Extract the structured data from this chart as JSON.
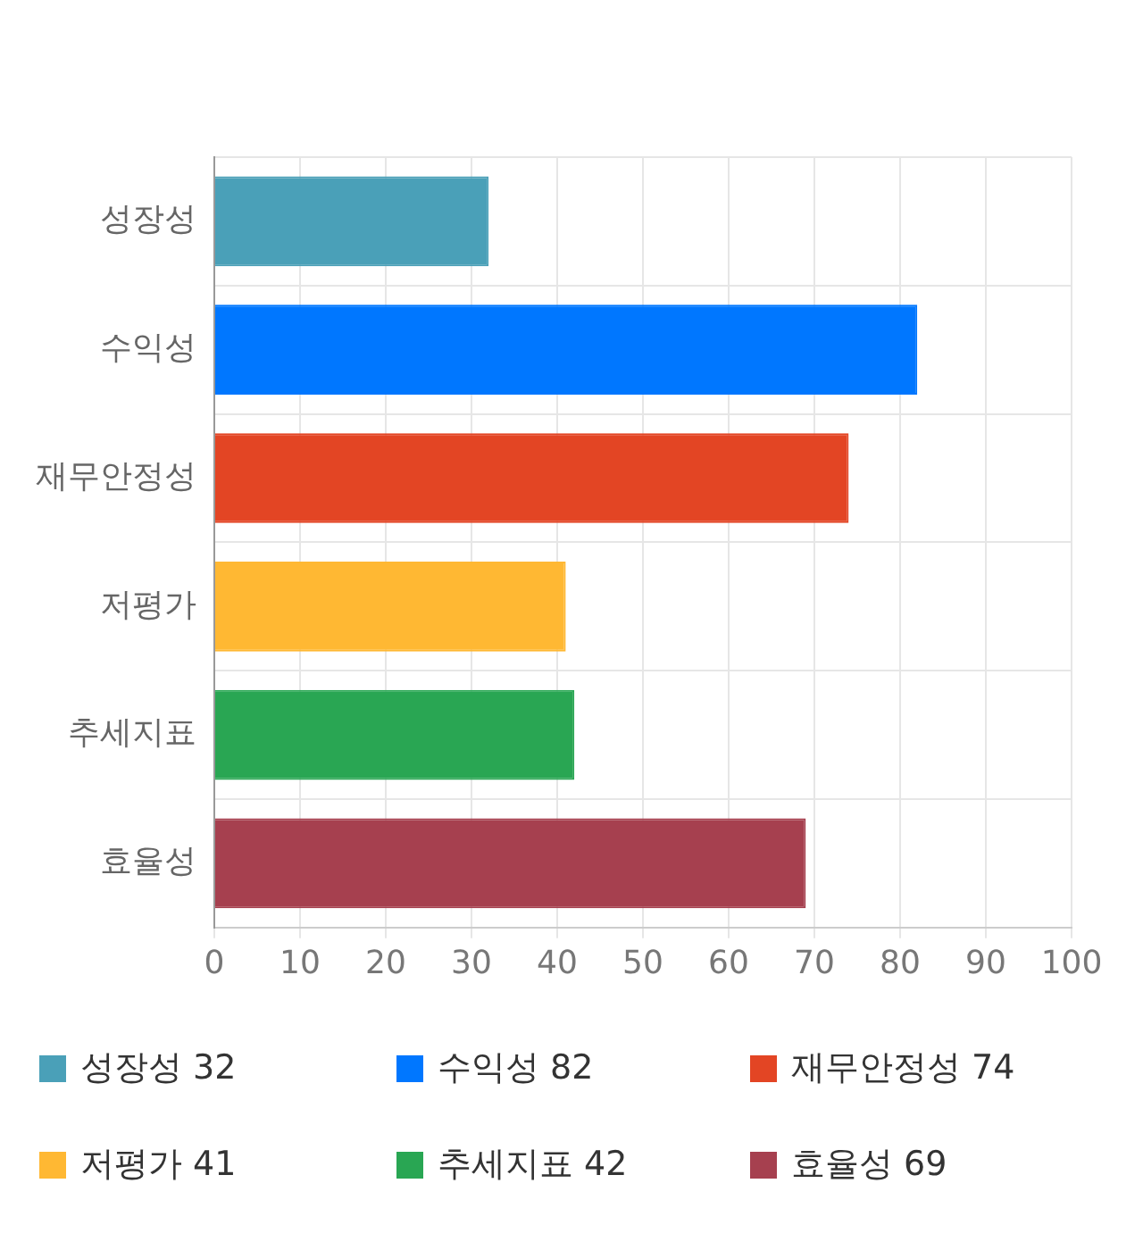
{
  "chart_data": {
    "type": "bar",
    "orientation": "horizontal",
    "categories": [
      "성장성",
      "수익성",
      "재무안정성",
      "저평가",
      "추세지표",
      "효율성"
    ],
    "values": [
      32,
      82,
      74,
      41,
      42,
      69
    ],
    "value_labels": [
      "32",
      "82",
      "74",
      "41",
      "42",
      "69"
    ],
    "colors": [
      "#4aa0b8",
      "#0077ff",
      "#e34524",
      "#ffb833",
      "#29a653",
      "#a6404f"
    ],
    "xlim": [
      0,
      100
    ],
    "xticks": [
      0,
      10,
      20,
      30,
      40,
      50,
      60,
      70,
      80,
      90,
      100
    ],
    "grid": true
  }
}
